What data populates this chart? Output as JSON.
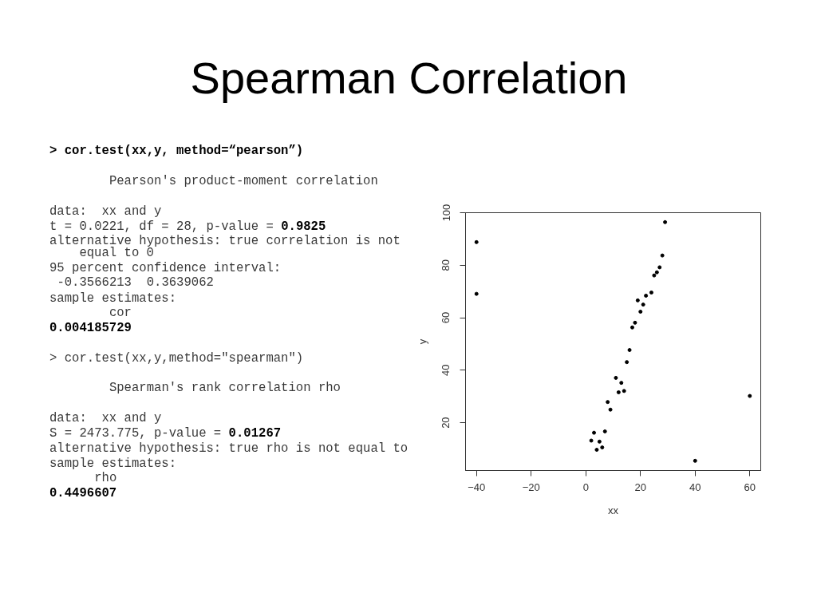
{
  "chart_data": {
    "type": "scatter",
    "title": "Spearman Correlation",
    "xlabel": "xx",
    "ylabel": "y",
    "xlim": [
      -44,
      64
    ],
    "ylim": [
      1.8,
      100
    ],
    "xticks": [
      -40,
      -20,
      0,
      20,
      40,
      60
    ],
    "yticks": [
      20,
      40,
      60,
      80,
      100
    ],
    "marker": "circle",
    "series": [
      {
        "color": "#000000",
        "x": [
          -40,
          -40,
          2,
          3,
          4,
          5,
          6,
          7,
          8,
          9,
          11,
          12,
          13,
          14,
          15,
          16,
          17,
          18,
          19,
          20,
          21,
          22,
          24,
          25,
          26,
          27,
          28,
          29,
          40,
          60
        ],
        "values": [
          88.8,
          69.1,
          13.2,
          16.2,
          9.7,
          12.8,
          10.6,
          16.7,
          27.9,
          25.0,
          37.1,
          31.6,
          35.2,
          32.1,
          43.1,
          47.7,
          56.3,
          58.1,
          66.6,
          62.3,
          65.0,
          68.4,
          69.6,
          76.1,
          77.3,
          79.2,
          83.7,
          96.4,
          5.5,
          30.2
        ]
      }
    ],
    "annotations": [
      "> cor.test(xx,y, method=“pearson”)",
      "Pearson's product-moment correlation",
      "data:  xx and y",
      "t = 0.0221, df = 28, p-value =",
      "0.9825",
      "alternative hypothesis: true correlation is not",
      "equal to 0",
      "95 percent confidence interval:",
      "-0.3566213  0.3639062",
      "sample estimates:",
      "cor",
      "0.004185729",
      "> cor.test(xx,y,method=\"spearman\")",
      "Spearman's rank correlation rho",
      "data:  xx and y",
      "S = 2473.775, p-value =",
      "0.01267",
      "alternative hypothesis: true rho is not equal to",
      "sample estimates:",
      "rho",
      "0.4496607"
    ]
  }
}
